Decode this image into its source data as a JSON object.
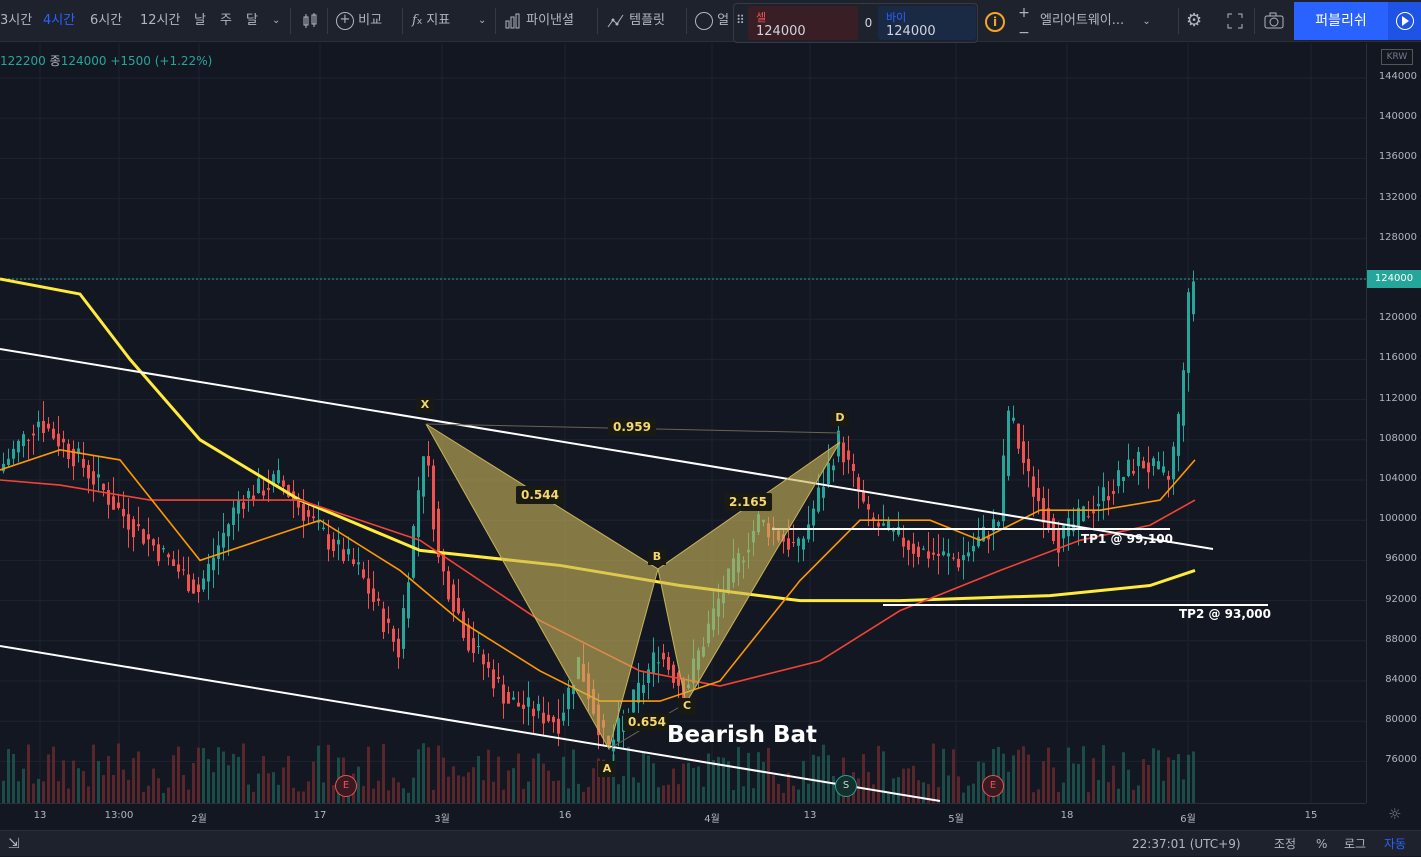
{
  "toolbar": {
    "intervals": [
      "3시간",
      "4시간",
      "6시간",
      "12시간",
      "날",
      "주",
      "달"
    ],
    "active_interval": "4시간",
    "compare": "비교",
    "indicators": "지표",
    "financials": "파이낸셜",
    "templates": "템플릿",
    "alert": "얼",
    "sell_label": "셀",
    "sell_price": "124000",
    "quantity": "0",
    "buy_label": "바이",
    "buy_price": "124000",
    "info": "i",
    "plus": "+",
    "minus": "−",
    "elliott": "엘리어트웨이...",
    "publish": "퍼블리쉬"
  },
  "legend": {
    "low": "122200",
    "close_prefix": "종",
    "close": "124000",
    "change": "+1500 (+1.22%)"
  },
  "price_axis": {
    "currency": "KRW",
    "ticks": [
      "144000",
      "140000",
      "136000",
      "132000",
      "128000",
      "124000",
      "120000",
      "116000",
      "112000",
      "108000",
      "104000",
      "100000",
      "96000",
      "92000",
      "88000",
      "84000",
      "80000",
      "76000"
    ],
    "current": "124000"
  },
  "time_axis": {
    "ticks": [
      "13",
      "13:00",
      "2월",
      "17",
      "3월",
      "16",
      "4월",
      "13",
      "5월",
      "18",
      "6월",
      "15"
    ]
  },
  "pattern": {
    "title": "Bearish Bat",
    "points": {
      "X": "X",
      "A": "A",
      "B": "B",
      "C": "C",
      "D": "D"
    },
    "ratios": {
      "xd": "0.959",
      "xb": "0.544",
      "ac": "0.654",
      "bd": "2.165"
    },
    "tp1": "TP1 @ 99,100",
    "tp2": "TP2 @ 93,000"
  },
  "events": [
    "E",
    "S",
    "E"
  ],
  "bottom": {
    "time": "22:37:01 (UTC+9)",
    "adjust": "조정",
    "percent": "%",
    "log": "로그",
    "auto": "자동"
  },
  "colors": {
    "up": "#26a69a",
    "down": "#ef5350",
    "ma_fast": "#ff9800",
    "ma_mid": "#f44336",
    "ma_slow": "#ffeb3b",
    "pattern_fill": "#c9b458",
    "accent": "#2962ff"
  }
}
